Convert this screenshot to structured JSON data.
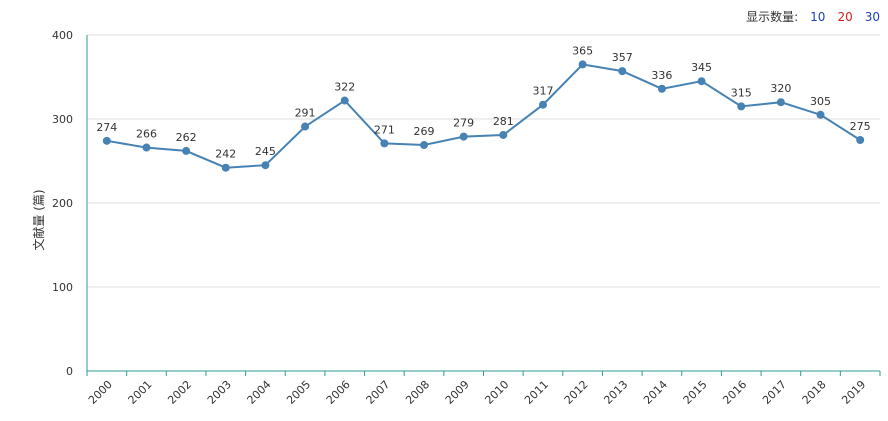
{
  "display_count": {
    "label": "显示数量:",
    "options": [
      "10",
      "20",
      "30"
    ]
  },
  "colors": {
    "line": "#4682B4",
    "axis": "#2e9c8f",
    "grid": "#dddddd",
    "option_blue": "#1f3fbf",
    "option_red": "#d21f1f"
  },
  "chart_data": {
    "type": "line",
    "categories": [
      "2000",
      "2001",
      "2002",
      "2003",
      "2004",
      "2005",
      "2006",
      "2007",
      "2008",
      "2009",
      "2010",
      "2011",
      "2012",
      "2013",
      "2014",
      "2015",
      "2016",
      "2017",
      "2018",
      "2019"
    ],
    "series": [
      {
        "values": [
          274,
          266,
          262,
          242,
          245,
          291,
          322,
          271,
          269,
          279,
          281,
          317,
          365,
          357,
          336,
          345,
          315,
          320,
          305,
          275
        ]
      }
    ],
    "title": "",
    "xlabel": "",
    "ylabel": "文献量 (篇)",
    "ylim": [
      0,
      400
    ],
    "yticks": [
      "0",
      "100",
      "200",
      "300",
      "400"
    ],
    "grid": true,
    "data_labels": true
  }
}
